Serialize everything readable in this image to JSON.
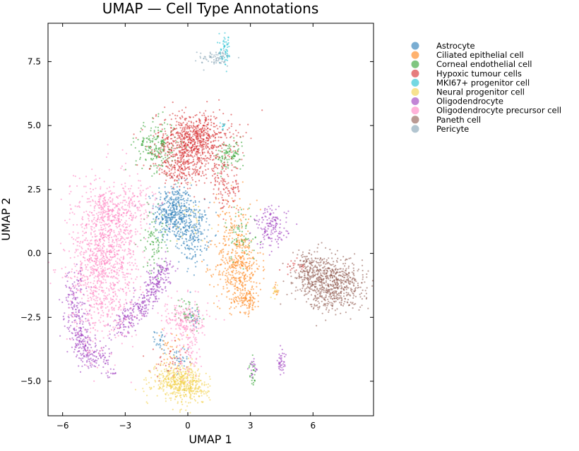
{
  "chart_data": {
    "type": "scatter",
    "title": "UMAP — Cell Type Annotations",
    "xlabel": "UMAP 1",
    "ylabel": "UMAP 2",
    "xlim": [
      -6.7,
      8.9
    ],
    "ylim": [
      -6.35,
      9.0
    ],
    "xticks": [
      -6,
      -3,
      0,
      3,
      6
    ],
    "yticks": [
      -5.0,
      -2.5,
      0.0,
      2.5,
      5.0,
      7.5
    ],
    "xtick_labels": [
      "−6",
      "−3",
      "0",
      "3",
      "6"
    ],
    "ytick_labels": [
      "−5.0",
      "−2.5",
      "0.0",
      "2.5",
      "5.0",
      "7.5"
    ],
    "grid": false,
    "legend_position": "outside-right",
    "series": [
      {
        "name": "Astrocyte",
        "color": "#1f77b4",
        "clusters": [
          {
            "center": [
              -0.7,
              1.6
            ],
            "spread": [
              0.45,
              0.55
            ],
            "count": 420
          },
          {
            "center": [
              0.3,
              0.8
            ],
            "spread": [
              0.35,
              0.6
            ],
            "count": 220
          },
          {
            "center": [
              -1.3,
              -3.4
            ],
            "spread": [
              0.15,
              0.2
            ],
            "count": 25
          },
          {
            "center": [
              -0.5,
              -4.3
            ],
            "spread": [
              0.25,
              0.35
            ],
            "count": 30
          },
          {
            "center": [
              0.3,
              -2.5
            ],
            "spread": [
              0.2,
              0.25
            ],
            "count": 20
          }
        ]
      },
      {
        "name": "Ciliated epithelial cell",
        "color": "#ff7f0e",
        "clusters": [
          {
            "center": [
              2.4,
              -0.5
            ],
            "spread": [
              0.55,
              0.75
            ],
            "count": 420
          },
          {
            "center": [
              2.8,
              -1.8
            ],
            "spread": [
              0.35,
              0.25
            ],
            "count": 100
          },
          {
            "center": [
              2.2,
              1.5
            ],
            "spread": [
              0.4,
              0.5
            ],
            "count": 60
          },
          {
            "center": [
              -0.8,
              -3.6
            ],
            "spread": [
              0.4,
              0.3
            ],
            "count": 30
          },
          {
            "center": [
              4.2,
              -1.5
            ],
            "spread": [
              0.08,
              0.15
            ],
            "count": 12
          }
        ]
      },
      {
        "name": "Corneal endothelial cell",
        "color": "#2ca02c",
        "clusters": [
          {
            "center": [
              -1.5,
              4.2
            ],
            "spread": [
              0.5,
              0.5
            ],
            "count": 200
          },
          {
            "center": [
              2.0,
              3.8
            ],
            "spread": [
              0.35,
              0.3
            ],
            "count": 100
          },
          {
            "center": [
              -1.6,
              0.5
            ],
            "spread": [
              0.3,
              0.6
            ],
            "count": 90
          },
          {
            "center": [
              0.0,
              -2.3
            ],
            "spread": [
              0.3,
              0.3
            ],
            "count": 45
          },
          {
            "center": [
              3.1,
              -4.7
            ],
            "spread": [
              0.08,
              0.25
            ],
            "count": 25
          },
          {
            "center": [
              2.6,
              0.8
            ],
            "spread": [
              0.4,
              0.6
            ],
            "count": 60
          }
        ]
      },
      {
        "name": "Hypoxic tumour cells",
        "color": "#d62728",
        "clusters": [
          {
            "center": [
              0.3,
              4.4
            ],
            "spread": [
              0.9,
              0.55
            ],
            "count": 800
          },
          {
            "center": [
              -0.3,
              3.3
            ],
            "spread": [
              0.7,
              0.35
            ],
            "count": 200
          },
          {
            "center": [
              1.8,
              2.6
            ],
            "spread": [
              0.4,
              0.45
            ],
            "count": 120
          },
          {
            "center": [
              -0.8,
              -4.3
            ],
            "spread": [
              0.5,
              0.3
            ],
            "count": 40
          },
          {
            "center": [
              5.1,
              -0.5
            ],
            "spread": [
              0.3,
              0.15
            ],
            "count": 20
          }
        ]
      },
      {
        "name": "MKI67+ progenitor cell",
        "color": "#17becf",
        "clusters": [
          {
            "center": [
              1.8,
              7.9
            ],
            "spread": [
              0.15,
              0.3
            ],
            "count": 60
          },
          {
            "center": [
              1.7,
              5.0
            ],
            "spread": [
              0.05,
              0.08
            ],
            "count": 10
          }
        ]
      },
      {
        "name": "Neural progenitor cell",
        "color": "#f2cf45",
        "clusters": [
          {
            "center": [
              -0.5,
              -5.0
            ],
            "spread": [
              0.6,
              0.35
            ],
            "count": 420
          },
          {
            "center": [
              0.2,
              -5.3
            ],
            "spread": [
              0.4,
              0.3
            ],
            "count": 120
          },
          {
            "center": [
              4.2,
              -1.5
            ],
            "spread": [
              0.06,
              0.15
            ],
            "count": 12
          },
          {
            "center": [
              0.2,
              1.4
            ],
            "spread": [
              0.5,
              0.5
            ],
            "count": 20
          }
        ]
      },
      {
        "name": "Oligodendrocyte",
        "color": "#9933bb",
        "arcs": [
          {
            "points": [
              [
                -1.0,
                -0.5
              ],
              [
                -2.0,
                -1.8
              ],
              [
                -3.3,
                -3.0
              ]
            ],
            "spread": 0.25,
            "count": 350
          },
          {
            "points": [
              [
                -5.4,
                -1.0
              ],
              [
                -5.3,
                -2.8
              ],
              [
                -5.0,
                -3.8
              ],
              [
                -4.0,
                -4.2
              ]
            ],
            "spread": 0.3,
            "count": 360
          }
        ],
        "clusters": [
          {
            "center": [
              4.0,
              1.0
            ],
            "spread": [
              0.4,
              0.4
            ],
            "count": 150
          },
          {
            "center": [
              4.5,
              -4.3
            ],
            "spread": [
              0.1,
              0.25
            ],
            "count": 40
          },
          {
            "center": [
              3.1,
              -4.5
            ],
            "spread": [
              0.1,
              0.2
            ],
            "count": 20
          },
          {
            "center": [
              -3.6,
              -4.7
            ],
            "spread": [
              0.15,
              0.07
            ],
            "count": 10
          }
        ]
      },
      {
        "name": "Oligodendrocyte precursor cell",
        "color": "#ff7fc0",
        "clusters": [
          {
            "center": [
              -4.0,
              -0.2
            ],
            "spread": [
              0.85,
              1.5
            ],
            "count": 1200
          },
          {
            "center": [
              -3.5,
              1.7
            ],
            "spread": [
              0.7,
              0.4
            ],
            "count": 200
          },
          {
            "center": [
              -0.1,
              -2.6
            ],
            "spread": [
              0.55,
              0.35
            ],
            "count": 200
          },
          {
            "center": [
              0.1,
              -3.9
            ],
            "spread": [
              0.3,
              0.5
            ],
            "count": 60
          },
          {
            "center": [
              -2.0,
              2.2
            ],
            "spread": [
              0.4,
              0.3
            ],
            "count": 40
          }
        ]
      },
      {
        "name": "Paneth cell",
        "color": "#8c564b",
        "clusters": [
          {
            "center": [
              6.9,
              -1.2
            ],
            "spread": [
              0.75,
              0.5
            ],
            "count": 650
          },
          {
            "center": [
              5.8,
              -0.6
            ],
            "spread": [
              0.4,
              0.35
            ],
            "count": 150
          }
        ]
      },
      {
        "name": "Pericyte",
        "color": "#7f9fb0",
        "clusters": [
          {
            "center": [
              1.4,
              7.65
            ],
            "spread": [
              0.45,
              0.18
            ],
            "count": 70
          }
        ]
      }
    ]
  }
}
